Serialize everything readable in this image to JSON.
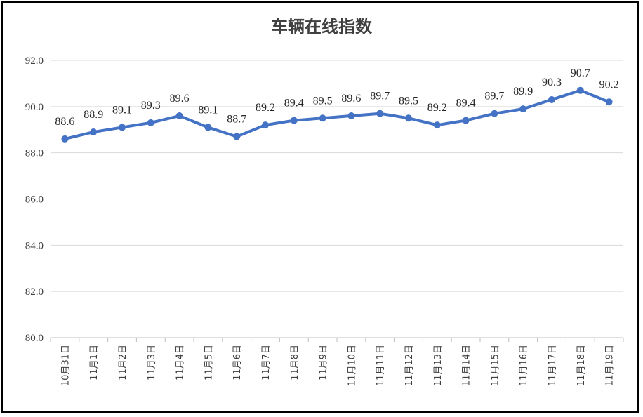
{
  "chart_data": {
    "type": "line",
    "title": "车辆在线指数",
    "xlabel": "",
    "ylabel": "",
    "ylim": [
      80.0,
      92.0
    ],
    "yticks": [
      "80.0",
      "82.0",
      "84.0",
      "86.0",
      "88.0",
      "90.0",
      "92.0"
    ],
    "grid": true,
    "categories": [
      "10月31日",
      "11月1日",
      "11月2日",
      "11月3日",
      "11月4日",
      "11月5日",
      "11月6日",
      "11月7日",
      "11月8日",
      "11月9日",
      "11月10日",
      "11月11日",
      "11月12日",
      "11月13日",
      "11月14日",
      "11月15日",
      "11月16日",
      "11月17日",
      "11月18日",
      "11月19日"
    ],
    "series": [
      {
        "color": "#4472C4",
        "values": [
          88.6,
          88.9,
          89.1,
          89.3,
          89.6,
          89.1,
          88.7,
          89.2,
          89.4,
          89.5,
          89.6,
          89.7,
          89.5,
          89.2,
          89.4,
          89.7,
          89.9,
          90.3,
          90.7,
          90.2
        ]
      }
    ]
  }
}
